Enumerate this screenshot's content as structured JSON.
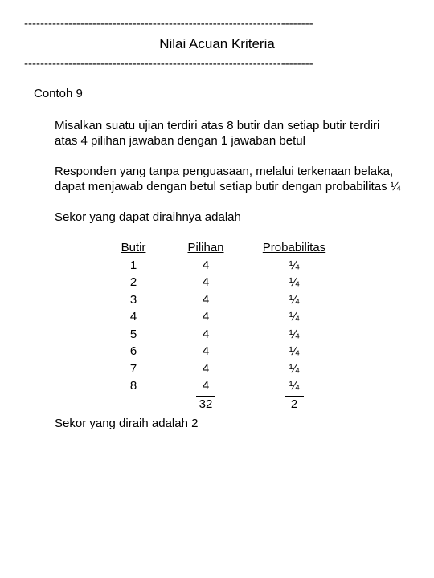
{
  "divider": "------------------------------------------------------------------------",
  "title": "Nilai Acuan Kriteria",
  "section_label": "Contoh 9",
  "para1": "Misalkan suatu ujian terdiri atas 8 butir dan setiap butir terdiri atas 4 pilihan jawaban dengan 1 jawaban betul",
  "para2": "Responden yang tanpa penguasaan, melalui terkenaan belaka,  dapat menjawab dengan betul setiap butir dengan probabilitas ¼",
  "para3": "Sekor yang dapat diraihnya adalah",
  "table": {
    "headers": {
      "butir": "Butir",
      "pilihan": "Pilihan",
      "prob": "Probabilitas"
    },
    "rows": [
      {
        "butir": "1",
        "pilihan": "4",
        "prob": "¼"
      },
      {
        "butir": "2",
        "pilihan": "4",
        "prob": "¼"
      },
      {
        "butir": "3",
        "pilihan": "4",
        "prob": "¼"
      },
      {
        "butir": "4",
        "pilihan": "4",
        "prob": "¼"
      },
      {
        "butir": "5",
        "pilihan": "4",
        "prob": "¼"
      },
      {
        "butir": "6",
        "pilihan": "4",
        "prob": "¼"
      },
      {
        "butir": "7",
        "pilihan": "4",
        "prob": "¼"
      },
      {
        "butir": "8",
        "pilihan": "4",
        "prob": "¼"
      }
    ],
    "totals": {
      "pilihan": "32",
      "prob": "2"
    }
  },
  "final": "Sekor yang diraih adalah 2"
}
